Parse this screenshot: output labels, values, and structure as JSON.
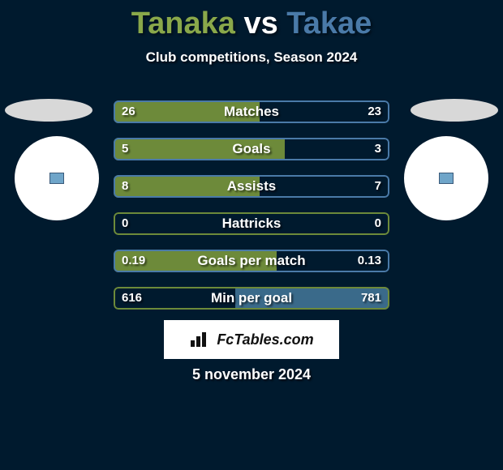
{
  "title": {
    "player1": "Tanaka",
    "vs": "vs",
    "player2": "Takae",
    "player1_color": "#8aa84a",
    "vs_color": "#ffffff",
    "player2_color": "#4a7aa8"
  },
  "subtitle": "Club competitions, Season 2024",
  "background_color": "#001a2e",
  "side_ellipse_color": "#d8d8d8",
  "side_circle_color": "#ffffff",
  "stats": [
    {
      "label": "Matches",
      "left_value": "26",
      "right_value": "23",
      "left_fill_pct": 53,
      "right_fill_pct": 47,
      "left_fill_color": "#6d8a3a",
      "right_fill_color": "#001a2e",
      "border_color": "#4a7aa8"
    },
    {
      "label": "Goals",
      "left_value": "5",
      "right_value": "3",
      "left_fill_pct": 62,
      "right_fill_pct": 38,
      "left_fill_color": "#6d8a3a",
      "right_fill_color": "#001a2e",
      "border_color": "#4a7aa8"
    },
    {
      "label": "Assists",
      "left_value": "8",
      "right_value": "7",
      "left_fill_pct": 53,
      "right_fill_pct": 47,
      "left_fill_color": "#6d8a3a",
      "right_fill_color": "#001a2e",
      "border_color": "#4a7aa8"
    },
    {
      "label": "Hattricks",
      "left_value": "0",
      "right_value": "0",
      "left_fill_pct": 50,
      "right_fill_pct": 50,
      "left_fill_color": "#001a2e",
      "right_fill_color": "#001a2e",
      "border_color": "#6d8a3a"
    },
    {
      "label": "Goals per match",
      "left_value": "0.19",
      "right_value": "0.13",
      "left_fill_pct": 59,
      "right_fill_pct": 41,
      "left_fill_color": "#6d8a3a",
      "right_fill_color": "#001a2e",
      "border_color": "#4a7aa8"
    },
    {
      "label": "Min per goal",
      "left_value": "616",
      "right_value": "781",
      "left_fill_pct": 44,
      "right_fill_pct": 56,
      "left_fill_color": "#001a2e",
      "right_fill_color": "#3a6a8a",
      "border_color": "#6d8a3a"
    }
  ],
  "logo": {
    "text": "FcTables.com",
    "icon_color": "#111111"
  },
  "date": "5 november 2024"
}
